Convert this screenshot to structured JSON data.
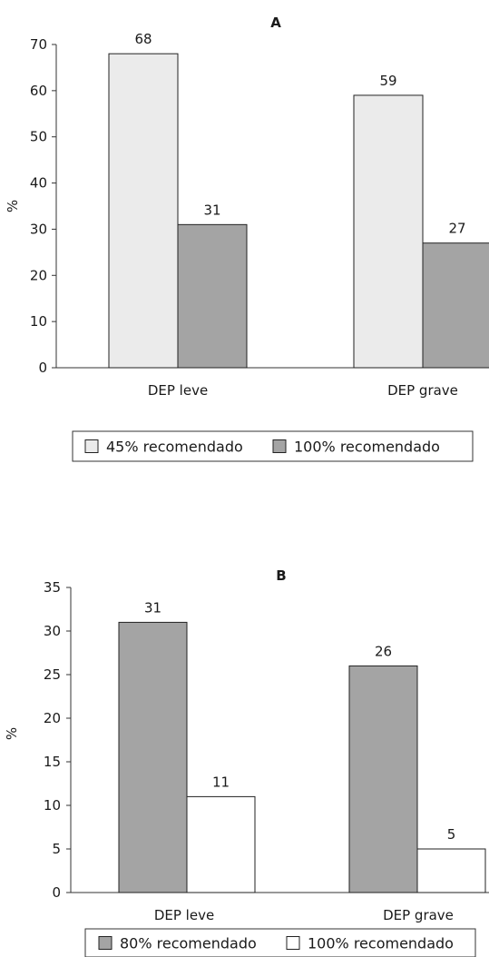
{
  "chart_data": [
    {
      "type": "bar",
      "title": "A",
      "ylabel": "%",
      "ylim": [
        0,
        70
      ],
      "yticks": [
        0,
        10,
        20,
        30,
        40,
        50,
        60,
        70
      ],
      "categories": [
        "DEP leve",
        "DEP grave"
      ],
      "series": [
        {
          "name": "45% recomendado",
          "values": [
            68,
            59
          ],
          "color": "#ebebeb"
        },
        {
          "name": "100% recomendado",
          "values": [
            31,
            27
          ],
          "color": "#a4a4a4"
        }
      ],
      "grid": false,
      "legend_position": "bottom"
    },
    {
      "type": "bar",
      "title": "B",
      "ylabel": "%",
      "ylim": [
        0,
        35
      ],
      "yticks": [
        0,
        5,
        10,
        15,
        20,
        25,
        30,
        35
      ],
      "categories": [
        "DEP leve",
        "DEP grave"
      ],
      "series": [
        {
          "name": "80% recomendado",
          "values": [
            31,
            26
          ],
          "color": "#a4a4a4"
        },
        {
          "name": "100% recomendado",
          "values": [
            11,
            5
          ],
          "color": "#ffffff"
        }
      ],
      "grid": false,
      "legend_position": "bottom"
    }
  ]
}
